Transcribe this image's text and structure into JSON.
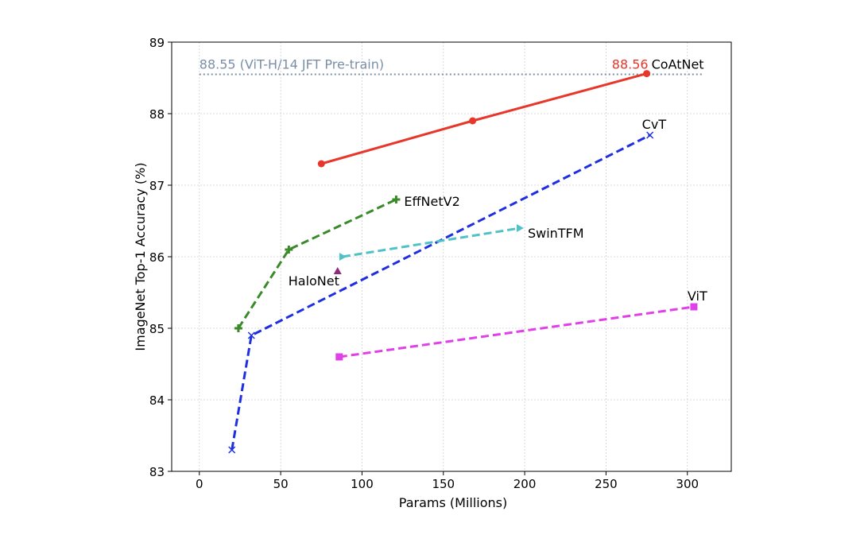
{
  "chart_data": {
    "type": "line",
    "title": "",
    "xlabel": "Params (Millions)",
    "ylabel": "ImageNet Top-1 Accuracy (%)",
    "xlim": [
      -17,
      327
    ],
    "ylim": [
      83,
      89
    ],
    "xticks": [
      0,
      50,
      100,
      150,
      200,
      250,
      300
    ],
    "yticks": [
      83,
      84,
      85,
      86,
      87,
      88,
      89
    ],
    "grid": true,
    "legend": "none",
    "reference_line": {
      "value": 88.55,
      "label": "88.55 (ViT-H/14 JFT Pre-train)",
      "color": "#7a8fa6",
      "x_range": [
        0,
        310
      ]
    },
    "series": [
      {
        "name": "CoAtNet",
        "color": "#e8372a",
        "dash": "solid",
        "marker": "circle",
        "x": [
          75,
          168,
          275
        ],
        "y": [
          87.3,
          87.9,
          88.56
        ],
        "highlight_label": "88.56",
        "highlight_color": "#e8372a"
      },
      {
        "name": "CvT",
        "color": "#1f2fe0",
        "dash": "dashed",
        "marker": "x",
        "x": [
          20,
          32,
          277
        ],
        "y": [
          83.3,
          84.9,
          87.7
        ]
      },
      {
        "name": "EffNetV2",
        "color": "#3a8a2a",
        "dash": "dashed",
        "marker": "plus",
        "x": [
          24,
          55,
          121
        ],
        "y": [
          85.0,
          86.1,
          86.8
        ]
      },
      {
        "name": "SwinTFM",
        "color": "#4fc2c8",
        "dash": "dashed",
        "marker": "triangle-right",
        "x": [
          88,
          197
        ],
        "y": [
          86.0,
          86.4
        ]
      },
      {
        "name": "HaloNet",
        "color": "#8b2b7a",
        "dash": "none",
        "marker": "triangle-up",
        "x": [
          85
        ],
        "y": [
          85.8
        ]
      },
      {
        "name": "ViT",
        "color": "#e040e8",
        "dash": "dashed",
        "marker": "square",
        "x": [
          86,
          304
        ],
        "y": [
          84.6,
          85.3
        ]
      }
    ]
  }
}
